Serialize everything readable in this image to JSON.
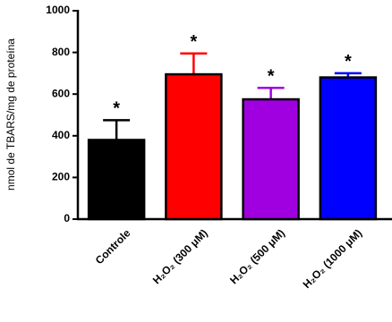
{
  "chart_data": {
    "type": "bar",
    "y_label": "nmol de TBARS/mg de proteína",
    "categories": [
      "Controle",
      "H₂O₂ (300 μM)",
      "H₂O₂ (500 μM)",
      "H₂O₂ (1000 μM)"
    ],
    "series": [
      {
        "values": [
          380,
          695,
          575,
          680
        ],
        "errors": [
          95,
          100,
          55,
          20
        ],
        "colors": [
          "#000000",
          "#ff0000",
          "#a000e0",
          "#0000ff"
        ]
      }
    ],
    "annotations": [
      "*",
      "*",
      "*",
      "*"
    ],
    "ylim": [
      0,
      1000
    ],
    "yticks": [
      0,
      200,
      400,
      600,
      800,
      1000
    ]
  }
}
